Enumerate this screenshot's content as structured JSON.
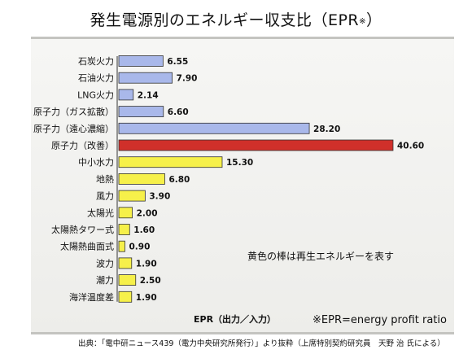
{
  "title": "発生電源別のエネルギー収支比（EPR",
  "title_mark": "※",
  "title_close": "）",
  "chart_data": {
    "type": "bar",
    "orientation": "horizontal",
    "categories": [
      "石炭火力",
      "石油火力",
      "LNG火力",
      "原子力（ガス拡散）",
      "原子力（遠心濃縮）",
      "原子力（改善）",
      "中小水力",
      "地熱",
      "風力",
      "太陽光",
      "太陽熱タワー式",
      "太陽熱曲面式",
      "波力",
      "潮力",
      "海洋温度差"
    ],
    "values": [
      6.55,
      7.9,
      2.14,
      6.6,
      28.2,
      40.6,
      15.3,
      6.8,
      3.9,
      2.0,
      1.6,
      0.9,
      1.9,
      2.5,
      1.9
    ],
    "value_labels": [
      "6.55",
      "7.90",
      "2.14",
      "6.60",
      "28.20",
      "40.60",
      "15.30",
      "6.80",
      "3.90",
      "2.00",
      "1.60",
      "0.90",
      "1.90",
      "2.50",
      "1.90"
    ],
    "bar_groups": [
      "fossil",
      "fossil",
      "fossil",
      "nuclear",
      "nuclear",
      "highlight",
      "renewable",
      "renewable",
      "renewable",
      "renewable",
      "renewable",
      "renewable",
      "renewable",
      "renewable",
      "renewable"
    ],
    "colors": {
      "fossil": "#a9b8ea",
      "nuclear": "#a9b8ea",
      "highlight": "#d0302a",
      "renewable": "#f6f04a",
      "outline": "#333333"
    },
    "xlim": [
      0,
      41
    ],
    "xlabel": "EPR（出力／入力）",
    "annotation": "黄色の棒は再生エネルギーを表す",
    "footnote": "※EPR=energy profit ratio"
  },
  "source": "出典：「電中研ニュース439（電力中央研究所発行）」より抜粋（上席特別契約研究員　天野 治 氏による）"
}
